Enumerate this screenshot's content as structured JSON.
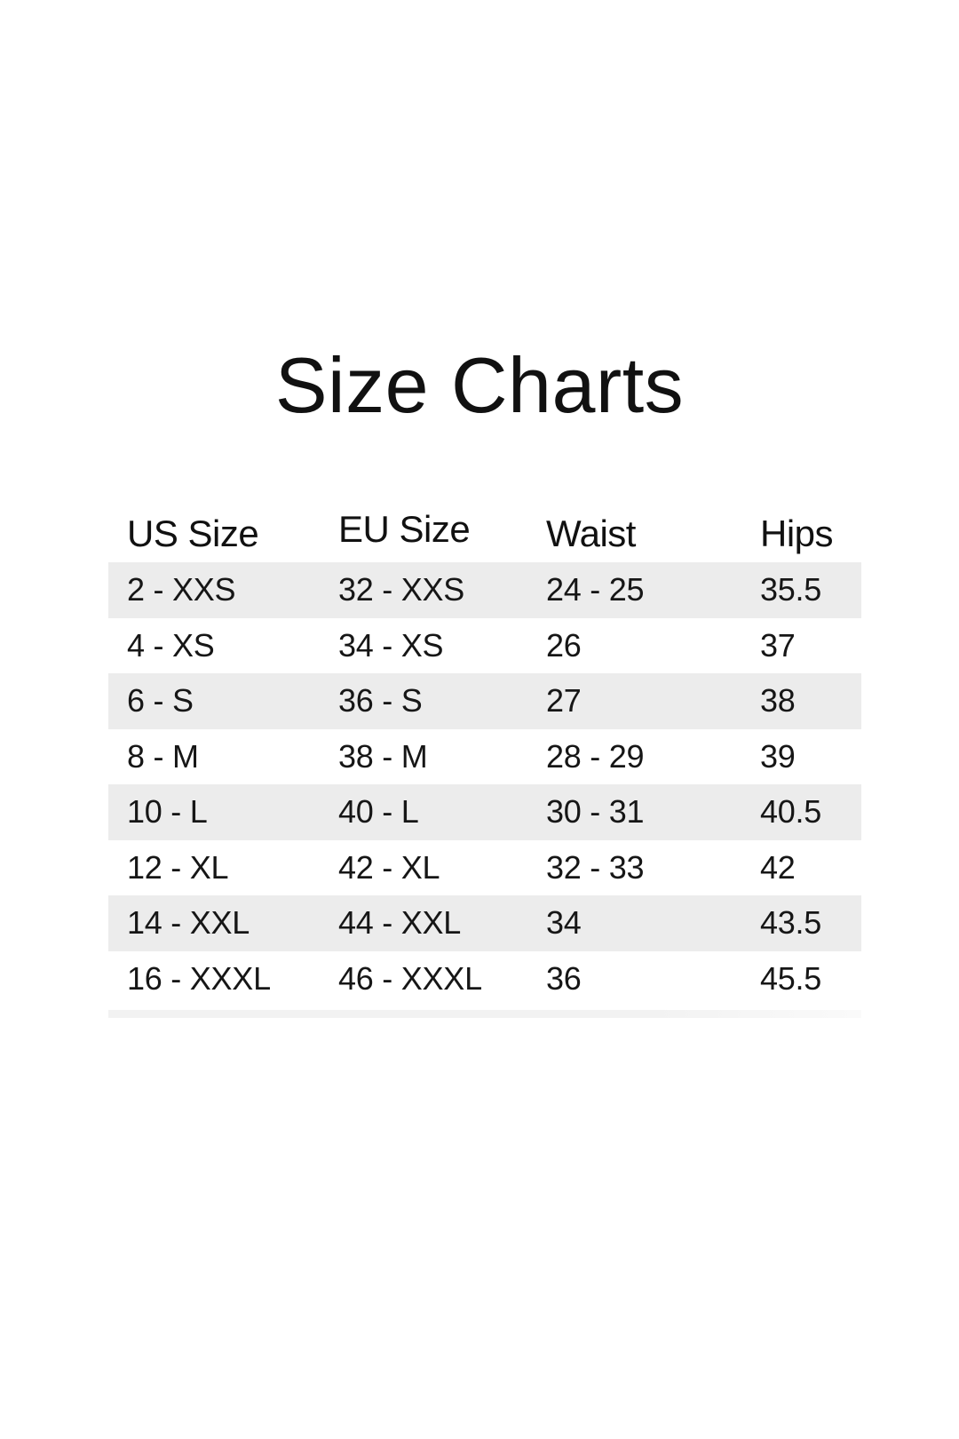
{
  "page": {
    "title": "Size Charts",
    "background_color": "#ffffff"
  },
  "size_table": {
    "headers": [
      "US Size",
      "EU Size",
      "Waist",
      "Hips"
    ],
    "rows": [
      [
        "2 - XXS",
        "32 - XXS",
        "24 - 25",
        "35.5"
      ],
      [
        "4 - XS",
        "34 - XS",
        "26",
        "37"
      ],
      [
        "6 - S",
        "36 - S",
        "27",
        "38"
      ],
      [
        "8 - M",
        "38 - M",
        "28 - 29",
        "39"
      ],
      [
        "10 - L",
        "40 - L",
        "30 - 31",
        "40.5"
      ],
      [
        "12 - XL",
        "42 - XL",
        "32 - 33",
        "42"
      ],
      [
        "14 - XXL",
        "44 - XXL",
        "34",
        "43.5"
      ],
      [
        "16 - XXXL",
        "46 - XXXL",
        "36",
        "45.5"
      ]
    ],
    "row_alt_color": "#ececec",
    "text_color": "#141414",
    "divider_color": "#f2f2f2"
  }
}
